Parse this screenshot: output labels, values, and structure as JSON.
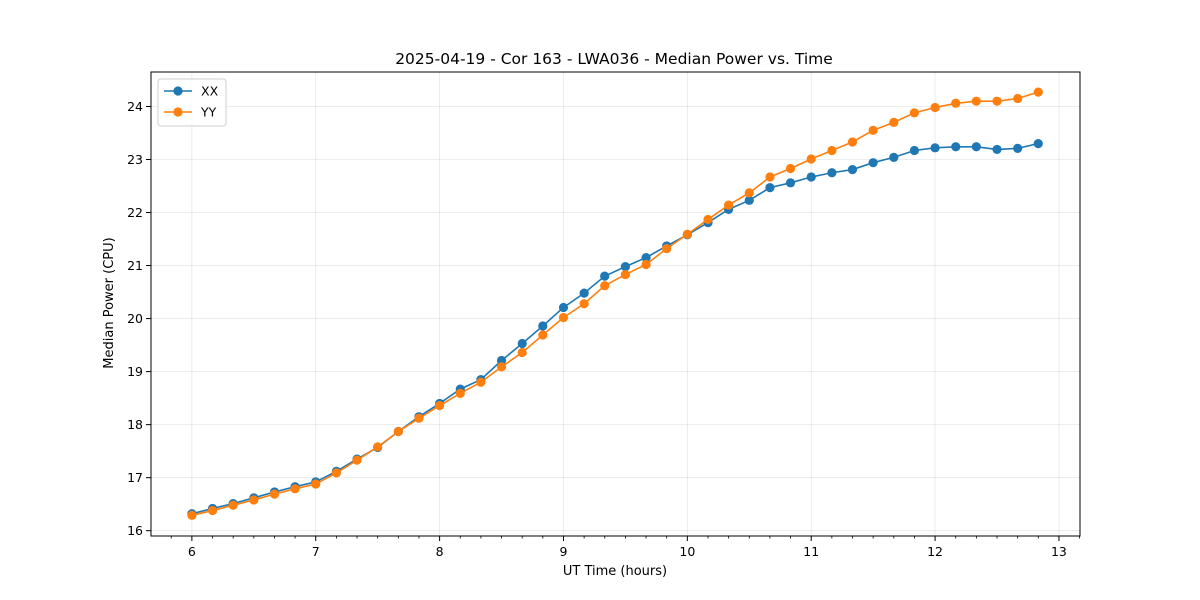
{
  "chart_data": {
    "type": "line",
    "title": "2025-04-19 - Cor 163 - LWA036 - Median Power vs. Time",
    "xlabel": "UT Time (hours)",
    "ylabel": "Median Power (CPU)",
    "xlim": [
      5.67,
      13.17
    ],
    "ylim": [
      15.9,
      24.65
    ],
    "xticks": [
      6,
      7,
      8,
      9,
      10,
      11,
      12,
      13
    ],
    "xtick_labels": [
      "6",
      "7",
      "8",
      "9",
      "10",
      "11",
      "12",
      "13"
    ],
    "yticks": [
      16,
      17,
      18,
      19,
      20,
      21,
      22,
      23,
      24
    ],
    "ytick_labels": [
      "16",
      "17",
      "18",
      "19",
      "20",
      "21",
      "22",
      "23",
      "24"
    ],
    "grid": true,
    "legend_position": "top-left",
    "x": [
      6.0,
      6.167,
      6.333,
      6.5,
      6.667,
      6.833,
      7.0,
      7.167,
      7.333,
      7.5,
      7.667,
      7.833,
      8.0,
      8.167,
      8.333,
      8.5,
      8.667,
      8.833,
      9.0,
      9.167,
      9.333,
      9.5,
      9.667,
      9.833,
      10.0,
      10.167,
      10.333,
      10.5,
      10.667,
      10.833,
      11.0,
      11.167,
      11.333,
      11.5,
      11.667,
      11.833,
      12.0,
      12.167,
      12.333,
      12.5,
      12.667,
      12.833
    ],
    "series": [
      {
        "name": "XX",
        "color": "#1f77b4",
        "values": [
          16.32,
          16.42,
          16.51,
          16.62,
          16.73,
          16.83,
          16.92,
          17.12,
          17.35,
          17.57,
          17.87,
          18.15,
          18.4,
          18.67,
          18.85,
          19.21,
          19.53,
          19.86,
          20.21,
          20.48,
          20.8,
          20.98,
          21.15,
          21.37,
          21.58,
          21.81,
          22.06,
          22.23,
          22.47,
          22.56,
          22.67,
          22.75,
          22.81,
          22.94,
          23.04,
          23.17,
          23.22,
          23.24,
          23.24,
          23.19,
          23.21,
          23.3
        ]
      },
      {
        "name": "YY",
        "color": "#ff7f0e",
        "values": [
          16.29,
          16.38,
          16.48,
          16.58,
          16.69,
          16.79,
          16.88,
          17.09,
          17.33,
          17.58,
          17.87,
          18.12,
          18.36,
          18.59,
          18.8,
          19.09,
          19.36,
          19.69,
          20.02,
          20.28,
          20.62,
          20.83,
          21.02,
          21.32,
          21.59,
          21.87,
          22.14,
          22.37,
          22.67,
          22.83,
          23.01,
          23.17,
          23.33,
          23.55,
          23.7,
          23.88,
          23.98,
          24.06,
          24.1,
          24.1,
          24.15,
          24.27
        ]
      }
    ]
  }
}
